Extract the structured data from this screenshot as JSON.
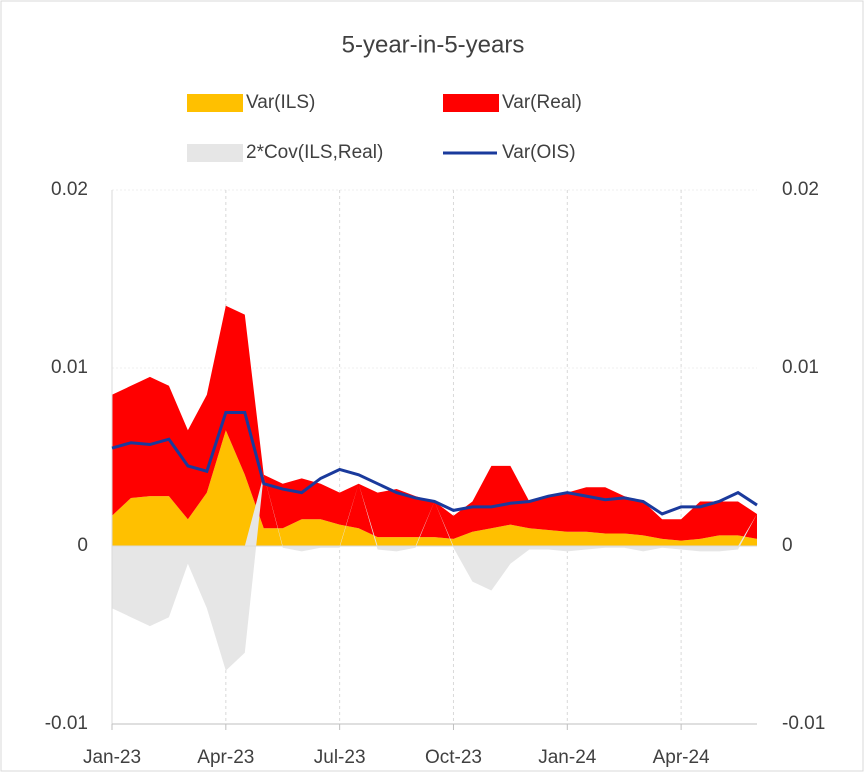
{
  "chart_data": {
    "type": "area",
    "title": "5-year-in-5-years",
    "x": [
      0,
      0.5,
      1,
      1.5,
      2,
      2.5,
      3,
      3.5,
      4,
      4.5,
      5,
      5.5,
      6,
      6.5,
      7,
      7.5,
      8,
      8.5,
      9,
      9.5,
      10,
      10.5,
      11,
      11.5,
      12,
      12.5,
      13,
      13.5,
      14,
      14.5,
      15,
      15.5,
      16,
      16.5,
      17
    ],
    "xlim": [
      0,
      17
    ],
    "xticks": [
      {
        "value": 0,
        "label": "Jan-23"
      },
      {
        "value": 3,
        "label": "Apr-23"
      },
      {
        "value": 6,
        "label": "Jul-23"
      },
      {
        "value": 9,
        "label": "Oct-23"
      },
      {
        "value": 12,
        "label": "Jan-24"
      },
      {
        "value": 15,
        "label": "Apr-24"
      }
    ],
    "ylim": [
      -0.01,
      0.02
    ],
    "yticks": [
      0.02,
      0.01,
      0,
      -0.01
    ],
    "y2lim": [
      -0.01,
      0.02
    ],
    "y2ticks": [
      0.02,
      0.01,
      0,
      -0.01
    ],
    "grid": true,
    "series": [
      {
        "name": "Var(ILS)",
        "color": "#ffc000",
        "values": [
          0.0017,
          0.0027,
          0.0028,
          0.0028,
          0.0015,
          0.003,
          0.0065,
          0.004,
          0.001,
          0.001,
          0.0015,
          0.0015,
          0.0012,
          0.001,
          0.0005,
          0.0005,
          0.0005,
          0.0005,
          0.0004,
          0.0008,
          0.001,
          0.0012,
          0.001,
          0.0009,
          0.0008,
          0.0008,
          0.0007,
          0.0007,
          0.0006,
          0.0004,
          0.0003,
          0.0004,
          0.0006,
          0.0006,
          0.0004
        ]
      },
      {
        "name": "Var(Real)",
        "color": "#ff0000",
        "values": [
          0.0068,
          0.0063,
          0.0067,
          0.0062,
          0.005,
          0.0055,
          0.007,
          0.009,
          0.003,
          0.0025,
          0.0023,
          0.002,
          0.0018,
          0.0025,
          0.0025,
          0.0027,
          0.0023,
          0.002,
          0.0013,
          0.0017,
          0.0035,
          0.0033,
          0.0015,
          0.0019,
          0.0022,
          0.0025,
          0.0026,
          0.0021,
          0.0019,
          0.0011,
          0.0012,
          0.0021,
          0.0019,
          0.0019,
          0.0014
        ]
      },
      {
        "name": "2*Cov(ILS,Real)",
        "color": "#e6e6e6",
        "values": [
          -0.0035,
          -0.004,
          -0.0045,
          -0.004,
          -0.001,
          -0.0035,
          -0.007,
          -0.006,
          0,
          -0.0001,
          -0.0003,
          -0.0001,
          -0.0001,
          0,
          -0.0002,
          -0.0003,
          -0.0001,
          0,
          -0.0001,
          -0.002,
          -0.0025,
          -0.001,
          -0.0002,
          -0.0002,
          -0.0003,
          -0.0002,
          -0.0001,
          -0.0001,
          -0.0003,
          -0.0001,
          -0.0002,
          -0.0003,
          -0.0003,
          -0.0002,
          0
        ]
      },
      {
        "name": "Var(OIS)",
        "type": "line",
        "color": "#1a3a9c",
        "values": [
          0.0055,
          0.0058,
          0.0057,
          0.006,
          0.0045,
          0.0042,
          0.0075,
          0.0075,
          0.0035,
          0.0032,
          0.003,
          0.0038,
          0.0043,
          0.004,
          0.0035,
          0.003,
          0.0027,
          0.0025,
          0.002,
          0.0022,
          0.0022,
          0.0024,
          0.0025,
          0.0028,
          0.003,
          0.0028,
          0.0026,
          0.0027,
          0.0025,
          0.0018,
          0.0022,
          0.0022,
          0.0025,
          0.003,
          0.0023
        ]
      }
    ]
  }
}
